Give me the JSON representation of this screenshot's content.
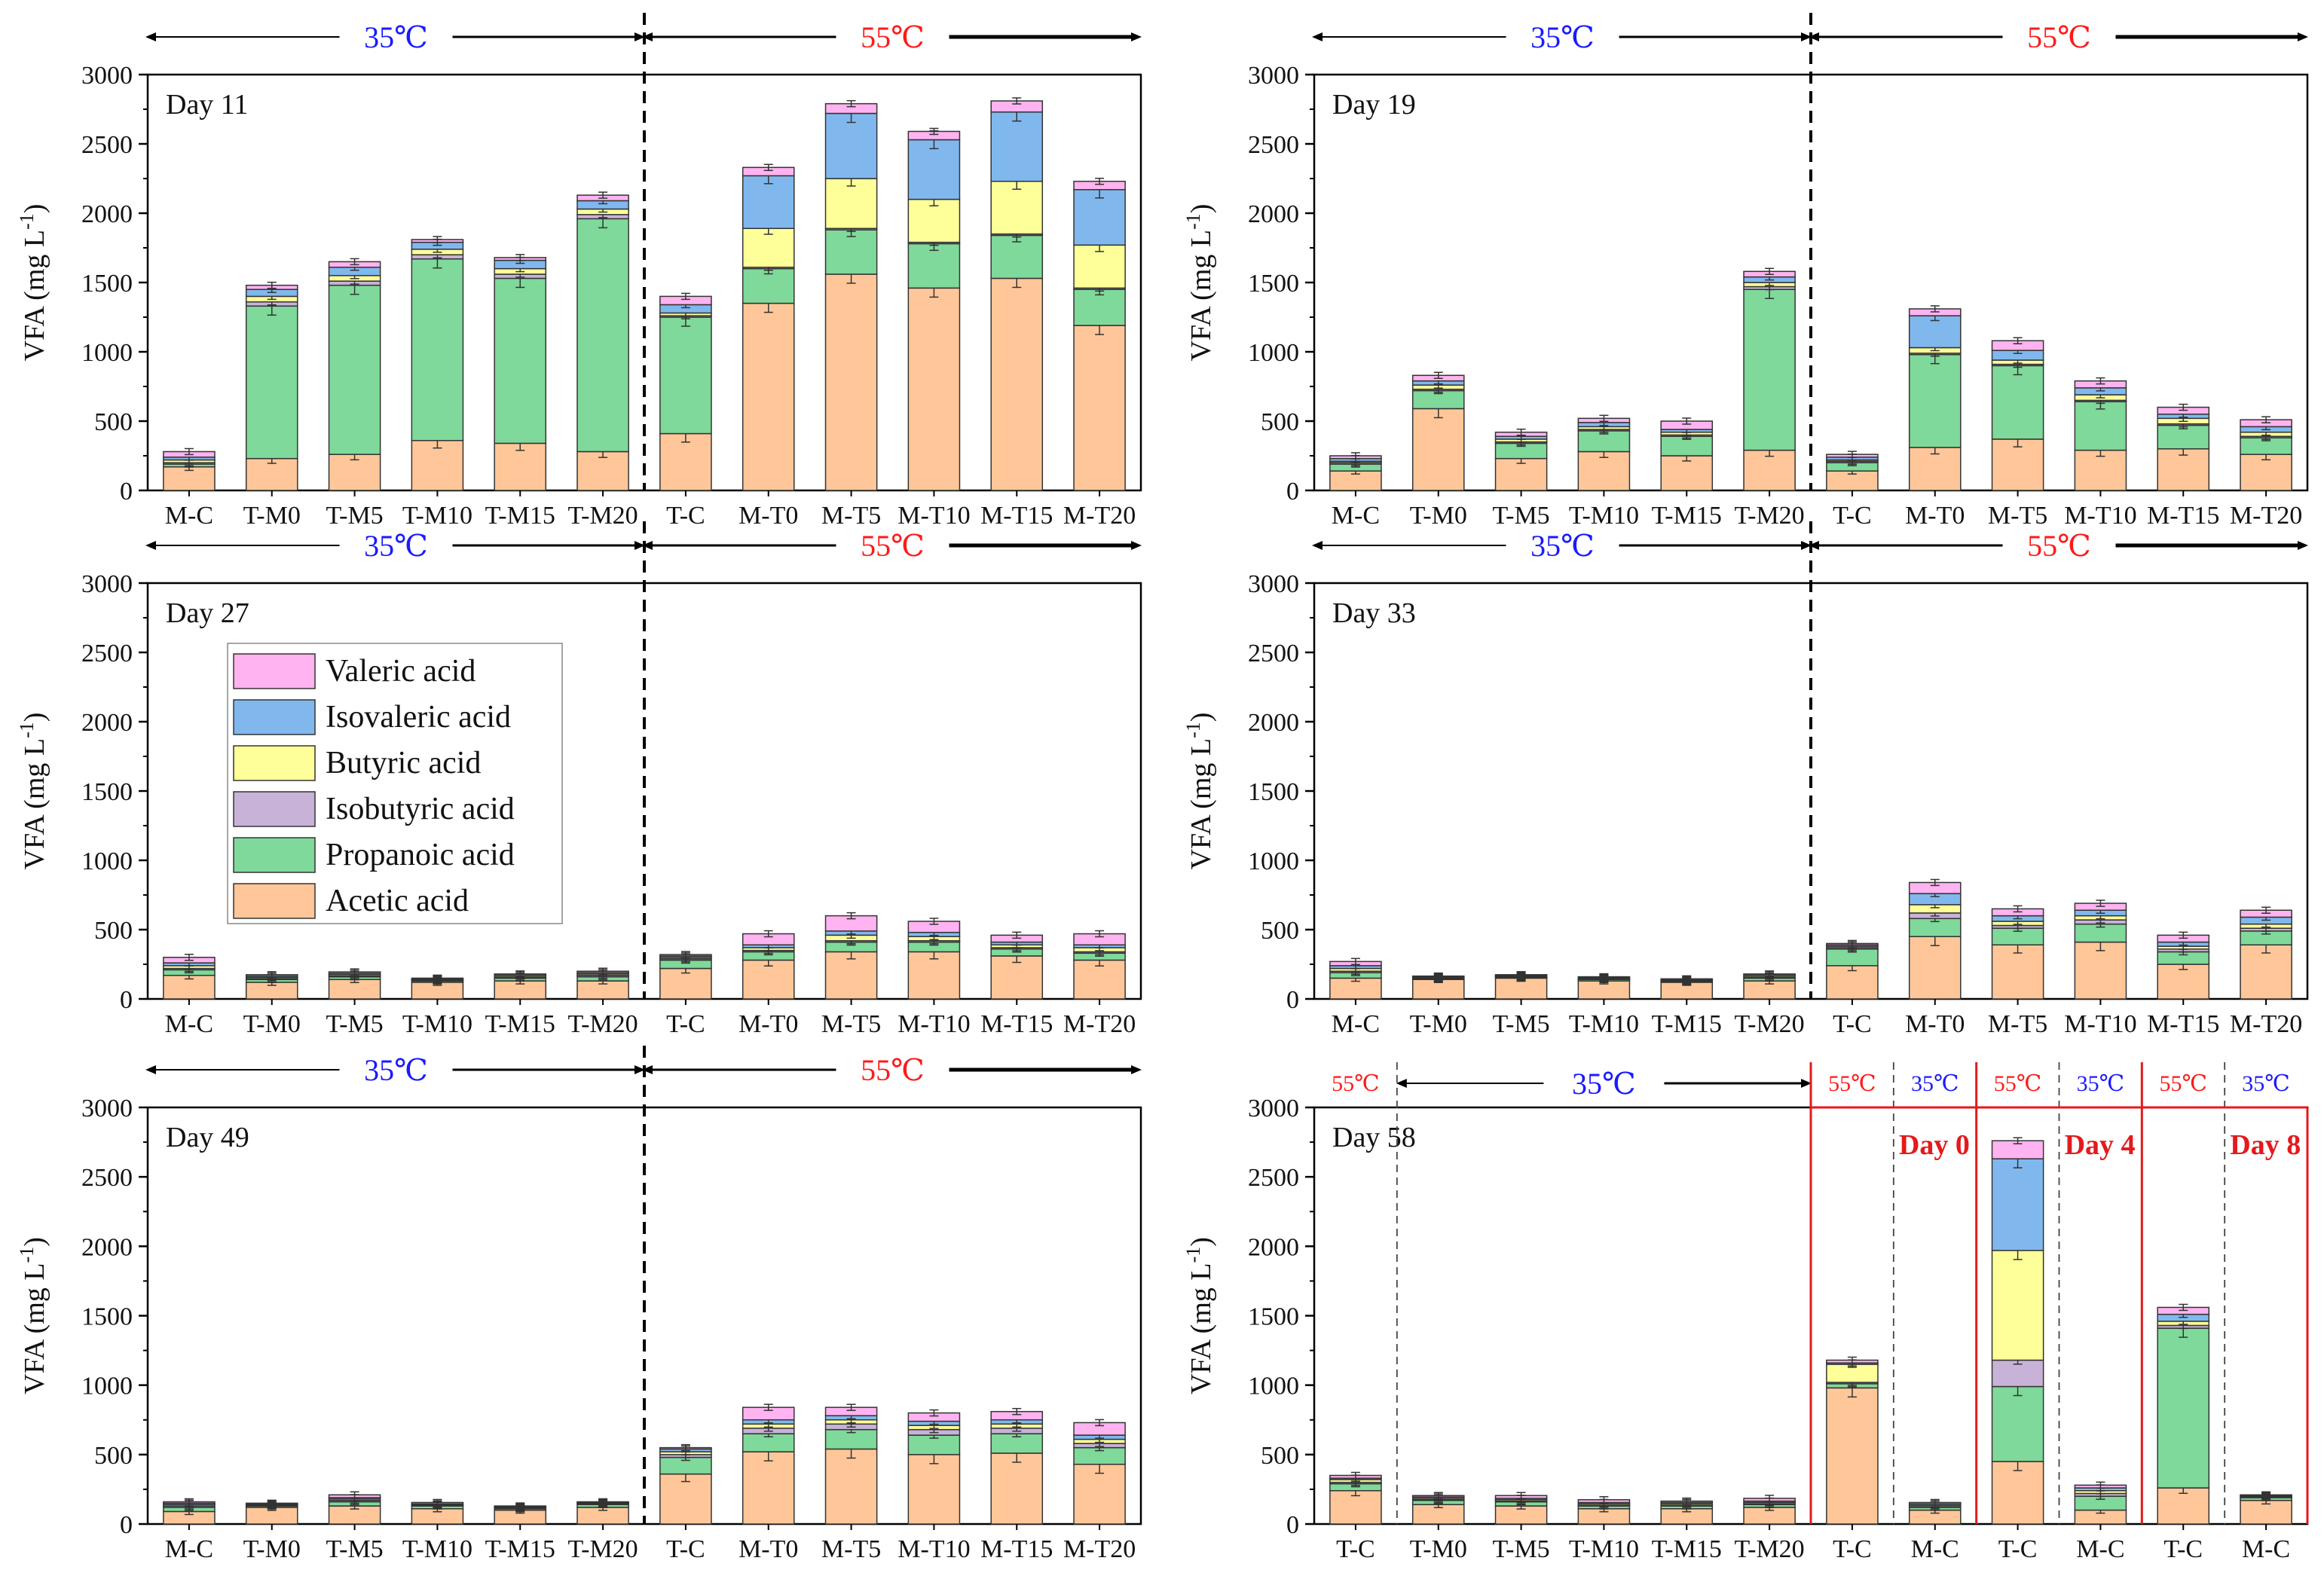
{
  "colors": {
    "Valeric acid": "#ffb3f0",
    "Isovaleric acid": "#80b8ee",
    "Butyric acid": "#ffff99",
    "Isobutyric acid": "#c8b2d8",
    "Propanoic acid": "#7fd99a",
    "Acetic acid": "#ffc799",
    "temp_35": "#1a1aff",
    "temp_55": "#ff1a1a",
    "highlight": "#e41a1c"
  },
  "legend": [
    "Valeric acid",
    "Isovaleric acid",
    "Butyric acid",
    "Isobutyric acid",
    "Propanoic acid",
    "Acetic acid"
  ],
  "chart_data": [
    {
      "type": "bar",
      "stacked": true,
      "title": "Day 11",
      "ylabel": "VFA (mg L-1)",
      "ylim": [
        0,
        3000
      ],
      "yticks": [
        0,
        500,
        1000,
        1500,
        2000,
        2500,
        3000
      ],
      "categories": [
        "M-C",
        "T-M0",
        "T-M5",
        "T-M10",
        "T-M15",
        "T-M20",
        "T-C",
        "M-T0",
        "M-T5",
        "M-T10",
        "M-T15",
        "M-T20"
      ],
      "regions": [
        {
          "label": "35℃",
          "temp": 35,
          "from": 0,
          "to": 5
        },
        {
          "label": "55℃",
          "temp": 55,
          "from": 6,
          "to": 11
        }
      ],
      "series": [
        {
          "name": "Acetic acid",
          "values": [
            170,
            230,
            260,
            360,
            340,
            280,
            410,
            1350,
            1560,
            1460,
            1530,
            1190
          ]
        },
        {
          "name": "Propanoic acid",
          "values": [
            20,
            1100,
            1220,
            1310,
            1190,
            1680,
            840,
            250,
            320,
            320,
            310,
            260
          ]
        },
        {
          "name": "Isobutyric acid",
          "values": [
            10,
            30,
            30,
            30,
            30,
            30,
            10,
            10,
            10,
            10,
            10,
            10
          ]
        },
        {
          "name": "Butyric acid",
          "values": [
            20,
            40,
            40,
            40,
            40,
            40,
            20,
            280,
            360,
            310,
            380,
            310
          ]
        },
        {
          "name": "Isovaleric acid",
          "values": [
            20,
            50,
            60,
            50,
            60,
            60,
            60,
            380,
            470,
            430,
            500,
            400
          ]
        },
        {
          "name": "Valeric acid",
          "values": [
            40,
            30,
            40,
            20,
            20,
            40,
            60,
            60,
            70,
            60,
            80,
            60
          ]
        }
      ]
    },
    {
      "type": "bar",
      "stacked": true,
      "title": "Day 19",
      "ylabel": "VFA (mg L-1)",
      "ylim": [
        0,
        3000
      ],
      "yticks": [
        0,
        500,
        1000,
        1500,
        2000,
        2500,
        3000
      ],
      "categories": [
        "M-C",
        "T-M0",
        "T-M5",
        "T-M10",
        "T-M15",
        "T-M20",
        "T-C",
        "M-T0",
        "M-T5",
        "M-T10",
        "M-T15",
        "M-T20"
      ],
      "regions": [
        {
          "label": "35℃",
          "temp": 35,
          "from": 0,
          "to": 5
        },
        {
          "label": "55℃",
          "temp": 55,
          "from": 6,
          "to": 11
        }
      ],
      "series": [
        {
          "name": "Acetic acid",
          "values": [
            140,
            590,
            230,
            280,
            250,
            290,
            140,
            310,
            370,
            290,
            300,
            260
          ]
        },
        {
          "name": "Propanoic acid",
          "values": [
            50,
            130,
            110,
            150,
            140,
            1160,
            60,
            670,
            530,
            350,
            170,
            120
          ]
        },
        {
          "name": "Isobutyric acid",
          "values": [
            10,
            10,
            10,
            10,
            10,
            20,
            10,
            10,
            10,
            10,
            10,
            10
          ]
        },
        {
          "name": "Butyric acid",
          "values": [
            10,
            30,
            20,
            20,
            20,
            30,
            10,
            40,
            30,
            40,
            40,
            30
          ]
        },
        {
          "name": "Isovaleric acid",
          "values": [
            20,
            30,
            20,
            30,
            20,
            40,
            20,
            230,
            70,
            50,
            30,
            40
          ]
        },
        {
          "name": "Valeric acid",
          "values": [
            20,
            40,
            30,
            30,
            60,
            40,
            20,
            50,
            70,
            50,
            50,
            50
          ]
        }
      ]
    },
    {
      "type": "bar",
      "stacked": true,
      "title": "Day 27",
      "ylabel": "VFA (mg L-1)",
      "ylim": [
        0,
        3000
      ],
      "yticks": [
        0,
        500,
        1000,
        1500,
        2000,
        2500,
        3000
      ],
      "categories": [
        "M-C",
        "T-M0",
        "T-M5",
        "T-M10",
        "T-M15",
        "T-M20",
        "T-C",
        "M-T0",
        "M-T5",
        "M-T10",
        "M-T15",
        "M-T20"
      ],
      "regions": [
        {
          "label": "35℃",
          "temp": 35,
          "from": 0,
          "to": 5
        },
        {
          "label": "55℃",
          "temp": 55,
          "from": 6,
          "to": 11
        }
      ],
      "series": [
        {
          "name": "Acetic acid",
          "values": [
            170,
            120,
            140,
            120,
            130,
            130,
            220,
            280,
            340,
            340,
            310,
            280
          ]
        },
        {
          "name": "Propanoic acid",
          "values": [
            40,
            20,
            20,
            10,
            20,
            30,
            60,
            60,
            70,
            70,
            50,
            50
          ]
        },
        {
          "name": "Isobutyric acid",
          "values": [
            10,
            5,
            5,
            5,
            5,
            10,
            10,
            10,
            10,
            10,
            10,
            10
          ]
        },
        {
          "name": "Butyric acid",
          "values": [
            20,
            10,
            10,
            5,
            10,
            10,
            10,
            20,
            40,
            30,
            20,
            30
          ]
        },
        {
          "name": "Isovaleric acid",
          "values": [
            20,
            10,
            10,
            5,
            10,
            10,
            10,
            20,
            30,
            30,
            20,
            20
          ]
        },
        {
          "name": "Valeric acid",
          "values": [
            40,
            10,
            10,
            5,
            5,
            10,
            10,
            80,
            110,
            80,
            50,
            80
          ]
        }
      ]
    },
    {
      "type": "bar",
      "stacked": true,
      "title": "Day 33",
      "ylabel": "VFA (mg L-1)",
      "ylim": [
        0,
        3000
      ],
      "yticks": [
        0,
        500,
        1000,
        1500,
        2000,
        2500,
        3000
      ],
      "categories": [
        "M-C",
        "T-M0",
        "T-M5",
        "T-M10",
        "T-M15",
        "T-M20",
        "T-C",
        "M-T0",
        "M-T5",
        "M-T10",
        "M-T15",
        "M-T20"
      ],
      "regions": [
        {
          "label": "35℃",
          "temp": 35,
          "from": 0,
          "to": 5
        },
        {
          "label": "55℃",
          "temp": 55,
          "from": 6,
          "to": 11
        }
      ],
      "series": [
        {
          "name": "Acetic acid",
          "values": [
            150,
            140,
            150,
            130,
            120,
            130,
            240,
            450,
            390,
            410,
            250,
            390
          ]
        },
        {
          "name": "Propanoic acid",
          "values": [
            40,
            5,
            5,
            10,
            5,
            20,
            120,
            130,
            120,
            130,
            90,
            100
          ]
        },
        {
          "name": "Isobutyric acid",
          "values": [
            10,
            5,
            5,
            5,
            5,
            5,
            10,
            40,
            20,
            30,
            20,
            20
          ]
        },
        {
          "name": "Butyric acid",
          "values": [
            20,
            5,
            5,
            5,
            5,
            10,
            10,
            60,
            30,
            30,
            20,
            30
          ]
        },
        {
          "name": "Isovaleric acid",
          "values": [
            20,
            5,
            5,
            5,
            5,
            10,
            10,
            80,
            40,
            40,
            30,
            50
          ]
        },
        {
          "name": "Valeric acid",
          "values": [
            30,
            5,
            5,
            5,
            5,
            5,
            10,
            80,
            50,
            50,
            50,
            50
          ]
        }
      ]
    },
    {
      "type": "bar",
      "stacked": true,
      "title": "Day 49",
      "ylabel": "VFA (mg L-1)",
      "ylim": [
        0,
        3000
      ],
      "yticks": [
        0,
        500,
        1000,
        1500,
        2000,
        2500,
        3000
      ],
      "categories": [
        "M-C",
        "T-M0",
        "T-M5",
        "T-M10",
        "T-M15",
        "T-M20",
        "T-C",
        "M-T0",
        "M-T5",
        "M-T10",
        "M-T15",
        "M-T20"
      ],
      "regions": [
        {
          "label": "35℃",
          "temp": 35,
          "from": 0,
          "to": 5
        },
        {
          "label": "55℃",
          "temp": 55,
          "from": 6,
          "to": 11
        }
      ],
      "series": [
        {
          "name": "Acetic acid",
          "values": [
            90,
            120,
            130,
            110,
            100,
            120,
            360,
            520,
            540,
            500,
            510,
            430
          ]
        },
        {
          "name": "Propanoic acid",
          "values": [
            30,
            10,
            30,
            20,
            10,
            20,
            120,
            130,
            140,
            140,
            140,
            120
          ]
        },
        {
          "name": "Isobutyric acid",
          "values": [
            10,
            5,
            10,
            5,
            5,
            5,
            20,
            40,
            40,
            40,
            40,
            30
          ]
        },
        {
          "name": "Butyric acid",
          "values": [
            10,
            5,
            10,
            5,
            5,
            5,
            20,
            30,
            30,
            30,
            30,
            30
          ]
        },
        {
          "name": "Isovaleric acid",
          "values": [
            10,
            5,
            10,
            5,
            5,
            5,
            20,
            30,
            30,
            30,
            30,
            30
          ]
        },
        {
          "name": "Valeric acid",
          "values": [
            10,
            5,
            20,
            10,
            5,
            5,
            10,
            90,
            60,
            60,
            60,
            90
          ]
        }
      ]
    },
    {
      "type": "bar",
      "stacked": true,
      "title": "Day 58",
      "ylabel": "VFA (mg L-1)",
      "ylim": [
        0,
        3000
      ],
      "yticks": [
        0,
        500,
        1000,
        1500,
        2000,
        2500,
        3000
      ],
      "categories": [
        "T-C",
        "T-M0",
        "T-M5",
        "T-M10",
        "T-M15",
        "T-M20",
        "T-C",
        "M-C",
        "T-C",
        "M-C",
        "T-C",
        "M-C"
      ],
      "groups": [
        {
          "label": "55℃",
          "temp": 55,
          "from": 0,
          "to": 0
        },
        {
          "label": "35℃",
          "temp": 35,
          "from": 1,
          "to": 5
        },
        {
          "label": "55℃",
          "temp": 55,
          "from": 6,
          "to": 6,
          "day": "Day 0"
        },
        {
          "label": "35℃",
          "temp": 35,
          "from": 7,
          "to": 7
        },
        {
          "label": "55℃",
          "temp": 55,
          "from": 8,
          "to": 8,
          "day": "Day 4"
        },
        {
          "label": "35℃",
          "temp": 35,
          "from": 9,
          "to": 9
        },
        {
          "label": "55℃",
          "temp": 55,
          "from": 10,
          "to": 10,
          "day": "Day 8"
        },
        {
          "label": "35℃",
          "temp": 35,
          "from": 11,
          "to": 11
        }
      ],
      "series": [
        {
          "name": "Acetic acid",
          "values": [
            240,
            140,
            130,
            110,
            110,
            120,
            980,
            100,
            450,
            100,
            260,
            170
          ]
        },
        {
          "name": "Propanoic acid",
          "values": [
            50,
            30,
            30,
            20,
            20,
            20,
            30,
            20,
            540,
            100,
            1150,
            20
          ]
        },
        {
          "name": "Isobutyric acid",
          "values": [
            10,
            5,
            5,
            5,
            5,
            5,
            10,
            5,
            190,
            20,
            20,
            5
          ]
        },
        {
          "name": "Butyric acid",
          "values": [
            20,
            10,
            10,
            10,
            10,
            10,
            130,
            10,
            790,
            20,
            30,
            5
          ]
        },
        {
          "name": "Isovaleric acid",
          "values": [
            10,
            10,
            10,
            10,
            10,
            10,
            10,
            10,
            660,
            20,
            50,
            5
          ]
        },
        {
          "name": "Valeric acid",
          "values": [
            20,
            10,
            20,
            20,
            10,
            20,
            20,
            10,
            130,
            20,
            50,
            5
          ]
        }
      ]
    }
  ]
}
